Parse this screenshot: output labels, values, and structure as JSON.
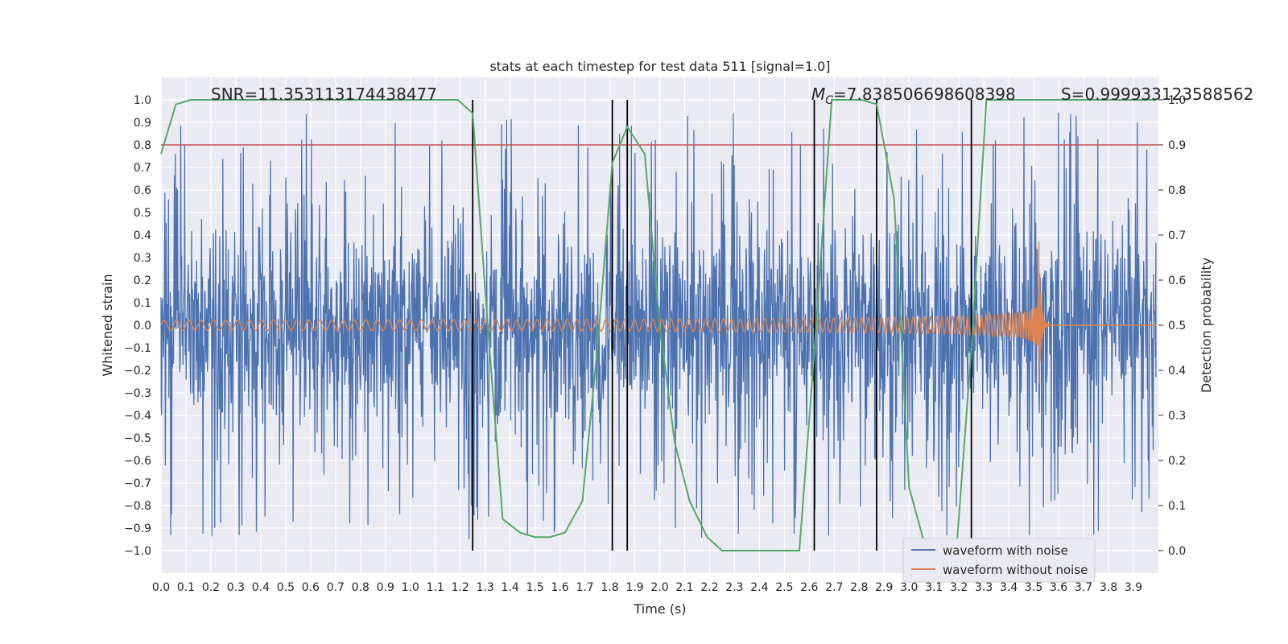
{
  "chart_data": {
    "type": "line",
    "title": "stats at each timestep for test data 511 [signal=1.0]",
    "xlabel": "Time (s)",
    "ylabel_left": "Whitened strain",
    "ylabel_right": "Detection probability",
    "xlim": [
      0.0,
      4.0
    ],
    "ylim_left": [
      -1.1,
      1.1
    ],
    "ylim_right": [
      -0.05,
      1.05
    ],
    "x_ticks": [
      "0.0",
      "0.1",
      "0.2",
      "0.3",
      "0.4",
      "0.5",
      "0.6",
      "0.7",
      "0.8",
      "0.9",
      "1.0",
      "1.1",
      "1.2",
      "1.3",
      "1.4",
      "1.5",
      "1.6",
      "1.7",
      "1.8",
      "1.9",
      "2.0",
      "2.1",
      "2.2",
      "2.3",
      "2.4",
      "2.5",
      "2.6",
      "2.7",
      "2.8",
      "2.9",
      "3.0",
      "3.1",
      "3.2",
      "3.3",
      "3.4",
      "3.5",
      "3.6",
      "3.7",
      "3.8",
      "3.9"
    ],
    "y_ticks_left": [
      "1.0",
      "0.9",
      "0.8",
      "0.7",
      "0.6",
      "0.5",
      "0.4",
      "0.3",
      "0.2",
      "0.1",
      "0.0",
      "−0.1",
      "−0.2",
      "−0.3",
      "−0.4",
      "−0.5",
      "−0.6",
      "−0.7",
      "−0.8",
      "−0.9",
      "−1.0"
    ],
    "y_ticks_right": [
      "1.0",
      "0.9",
      "0.8",
      "0.7",
      "0.6",
      "0.5",
      "0.4",
      "0.3",
      "0.2",
      "0.1",
      "0.0"
    ],
    "grid": true,
    "legend_placement": "lower-right",
    "annotations": {
      "snr": "SNR=11.353113174438477",
      "mc_symbol": "M",
      "mc_sub": "C",
      "mc_value": "=7.838506698608398",
      "s": "S=0.999933123588562"
    },
    "threshold_value": 0.9,
    "vertical_lines_x": [
      1.25,
      1.81,
      1.87,
      2.62,
      2.87,
      3.25
    ],
    "series": [
      {
        "name": "waveform with noise",
        "color": "#4c72b0",
        "description_amplitude": 0.9,
        "x_range": [
          0.0,
          4.0
        ]
      },
      {
        "name": "waveform without noise",
        "color": "#dd8452",
        "chirp_start_amplitude": 0.025,
        "chirp_peak_time": 3.52,
        "chirp_peak_amplitude": 0.42,
        "x_range": [
          0.0,
          4.0
        ]
      },
      {
        "color": "#55a868",
        "axis": "right",
        "x": [
          0.0,
          0.06,
          0.12,
          0.19,
          0.25,
          0.31,
          0.37,
          0.44,
          0.5,
          0.56,
          0.62,
          0.69,
          0.75,
          0.81,
          0.87,
          0.94,
          1.0,
          1.06,
          1.12,
          1.19,
          1.25,
          1.31,
          1.37,
          1.44,
          1.5,
          1.56,
          1.62,
          1.69,
          1.75,
          1.81,
          1.87,
          1.94,
          2.0,
          2.06,
          2.12,
          2.19,
          2.25,
          2.31,
          2.37,
          2.44,
          2.5,
          2.56,
          2.62,
          2.69,
          2.75,
          2.81,
          2.87,
          2.94,
          3.0,
          3.06,
          3.12,
          3.19,
          3.25,
          3.31,
          3.37,
          3.44,
          3.5,
          3.56,
          3.62,
          3.69,
          3.75,
          3.81,
          3.87,
          3.94,
          3.99
        ],
        "y": [
          0.88,
          0.99,
          1.0,
          1.0,
          1.0,
          1.0,
          1.0,
          1.0,
          1.0,
          1.0,
          1.0,
          1.0,
          1.0,
          1.0,
          1.0,
          1.0,
          1.0,
          1.0,
          1.0,
          1.0,
          0.97,
          0.5,
          0.07,
          0.04,
          0.03,
          0.03,
          0.04,
          0.11,
          0.45,
          0.86,
          0.94,
          0.88,
          0.5,
          0.24,
          0.11,
          0.03,
          0.0,
          0.0,
          0.0,
          0.0,
          0.0,
          0.0,
          0.44,
          1.0,
          1.0,
          1.0,
          0.99,
          0.78,
          0.14,
          0.02,
          0.0,
          0.0,
          0.45,
          1.0,
          1.0,
          1.0,
          1.0,
          1.0,
          1.0,
          1.0,
          1.0,
          1.0,
          1.0,
          1.0,
          1.0
        ]
      }
    ]
  }
}
